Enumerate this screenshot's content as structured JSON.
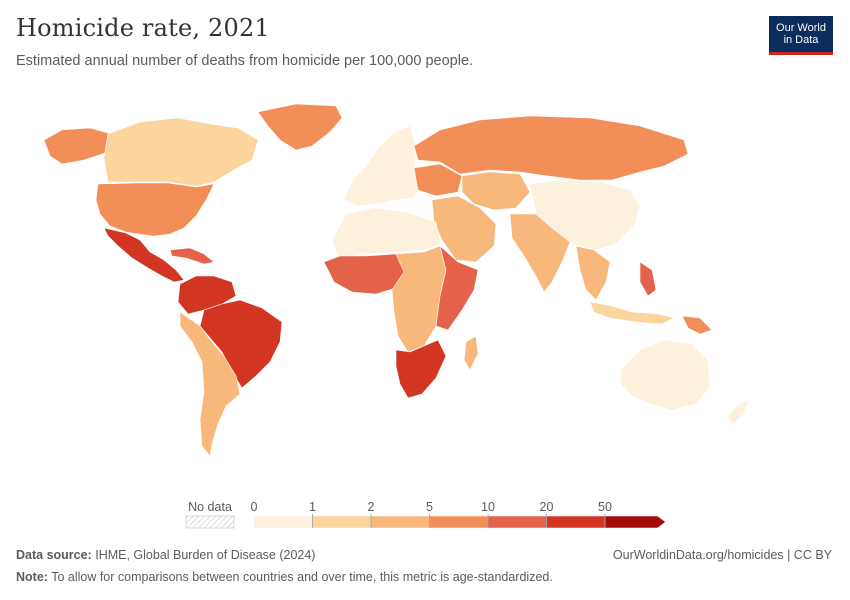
{
  "title": "Homicide rate, 2021",
  "subtitle": "Estimated annual number of deaths from homicide per 100,000 people.",
  "logo": {
    "line1": "Our World",
    "line2": "in Data"
  },
  "legend": {
    "no_data_label": "No data",
    "ticks": [
      "0",
      "1",
      "2",
      "5",
      "10",
      "20",
      "50"
    ],
    "colors": [
      "#fdf0dd",
      "#fbd49e",
      "#f8b87c",
      "#f28e58",
      "#e4614a",
      "#d23623",
      "#a20c0c"
    ]
  },
  "footer": {
    "source_label": "Data source:",
    "source_text": "IHME, Global Burden of Disease (2024)",
    "credit": "OurWorldinData.org/homicides | CC BY",
    "note_label": "Note:",
    "note_text": "To allow for comparisons between countries and over time, this metric is age-standardized."
  },
  "regions": {
    "north_america": "#f28e58",
    "usa": "#f28e58",
    "canada": "#fbd49e",
    "greenland": "#f28e58",
    "mexico_central_america": "#d23623",
    "caribbean": "#e4614a",
    "south_america_north": "#d23623",
    "brazil": "#d23623",
    "south_america_south": "#f8b87c",
    "europe": "#fdf0dd",
    "eastern_europe": "#f28e58",
    "russia": "#f28e58",
    "north_africa": "#fdf0dd",
    "sub_saharan_africa": "#f8b87c",
    "west_africa": "#e4614a",
    "east_africa": "#e4614a",
    "southern_africa": "#d23623",
    "middle_east": "#f8b87c",
    "central_asia": "#f8b87c",
    "south_asia": "#f8b87c",
    "china": "#fdf0dd",
    "southeast_asia": "#f8b87c",
    "philippines": "#e4614a",
    "indonesia": "#fbd49e",
    "australia": "#fdf0dd",
    "papua_new_guinea": "#f28e58"
  }
}
